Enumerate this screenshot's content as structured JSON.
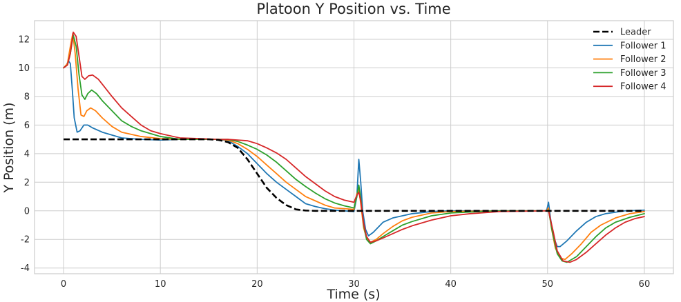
{
  "chart_data": {
    "type": "line",
    "title": "Platoon Y Position vs. Time",
    "xlabel": "Time (s)",
    "ylabel": "Y Position (m)",
    "xlim": [
      -3,
      63
    ],
    "ylim": [
      -4.4,
      13.3
    ],
    "xticks": [
      0,
      10,
      20,
      30,
      40,
      50,
      60
    ],
    "yticks": [
      -4,
      -2,
      0,
      2,
      4,
      6,
      8,
      10,
      12
    ],
    "grid": true,
    "legend_position": "top-right",
    "series": [
      {
        "name": "Leader",
        "color": "#000000",
        "dash": "dashed",
        "points": [
          [
            0,
            5
          ],
          [
            15,
            5
          ],
          [
            16,
            4.96
          ],
          [
            17,
            4.8
          ],
          [
            18,
            4.4
          ],
          [
            19,
            3.6
          ],
          [
            20,
            2.6
          ],
          [
            21,
            1.6
          ],
          [
            22,
            0.9
          ],
          [
            23,
            0.4
          ],
          [
            24,
            0.1
          ],
          [
            25,
            0.02
          ],
          [
            26,
            0
          ],
          [
            60,
            0
          ]
        ]
      },
      {
        "name": "Follower 1",
        "color": "#1f77b4",
        "dash": "solid",
        "points": [
          [
            0,
            10
          ],
          [
            0.3,
            10.2
          ],
          [
            0.5,
            10.5
          ],
          [
            0.7,
            10.3
          ],
          [
            0.9,
            8.5
          ],
          [
            1.1,
            6.5
          ],
          [
            1.4,
            5.5
          ],
          [
            1.7,
            5.6
          ],
          [
            2.1,
            6.0
          ],
          [
            2.5,
            6.0
          ],
          [
            3,
            5.8
          ],
          [
            4,
            5.5
          ],
          [
            6,
            5.1
          ],
          [
            8,
            5.0
          ],
          [
            10,
            4.95
          ],
          [
            12,
            5.0
          ],
          [
            14,
            5.0
          ],
          [
            16,
            5.0
          ],
          [
            17,
            4.9
          ],
          [
            18,
            4.5
          ],
          [
            19,
            4.0
          ],
          [
            20,
            3.3
          ],
          [
            21,
            2.6
          ],
          [
            22,
            2.0
          ],
          [
            23,
            1.5
          ],
          [
            24,
            1.0
          ],
          [
            25,
            0.5
          ],
          [
            26,
            0.3
          ],
          [
            27,
            0.15
          ],
          [
            28,
            0.05
          ],
          [
            29,
            0.0
          ],
          [
            30,
            -0.05
          ],
          [
            30.3,
            1.0
          ],
          [
            30.5,
            3.6
          ],
          [
            30.7,
            2.0
          ],
          [
            30.9,
            0.0
          ],
          [
            31.2,
            -1.3
          ],
          [
            31.5,
            -1.75
          ],
          [
            32,
            -1.5
          ],
          [
            33,
            -0.8
          ],
          [
            34,
            -0.5
          ],
          [
            36,
            -0.2
          ],
          [
            38,
            -0.05
          ],
          [
            40,
            0
          ],
          [
            45,
            0
          ],
          [
            49.9,
            0
          ],
          [
            50.1,
            0.6
          ],
          [
            50.3,
            -0.5
          ],
          [
            50.6,
            -1.8
          ],
          [
            51,
            -2.5
          ],
          [
            51.3,
            -2.5
          ],
          [
            52,
            -2.1
          ],
          [
            53,
            -1.4
          ],
          [
            54,
            -0.8
          ],
          [
            55,
            -0.4
          ],
          [
            56,
            -0.2
          ],
          [
            58,
            0
          ],
          [
            60,
            0.05
          ]
        ]
      },
      {
        "name": "Follower 2",
        "color": "#ff7f0e",
        "dash": "solid",
        "points": [
          [
            0,
            10
          ],
          [
            0.4,
            10.3
          ],
          [
            0.7,
            11.5
          ],
          [
            0.95,
            12.4
          ],
          [
            1.2,
            11
          ],
          [
            1.5,
            8.5
          ],
          [
            1.8,
            6.7
          ],
          [
            2.1,
            6.6
          ],
          [
            2.4,
            7.0
          ],
          [
            2.8,
            7.2
          ],
          [
            3.3,
            7.0
          ],
          [
            4,
            6.5
          ],
          [
            5,
            5.9
          ],
          [
            6,
            5.5
          ],
          [
            8,
            5.2
          ],
          [
            10,
            5.05
          ],
          [
            12,
            5.0
          ],
          [
            14,
            5.0
          ],
          [
            16,
            5.0
          ],
          [
            17,
            4.95
          ],
          [
            18,
            4.7
          ],
          [
            19,
            4.3
          ],
          [
            20,
            3.8
          ],
          [
            21,
            3.2
          ],
          [
            22,
            2.6
          ],
          [
            23,
            2.0
          ],
          [
            24,
            1.5
          ],
          [
            25,
            1.0
          ],
          [
            26,
            0.7
          ],
          [
            27,
            0.4
          ],
          [
            28,
            0.2
          ],
          [
            29,
            0.15
          ],
          [
            30,
            0.1
          ],
          [
            30.3,
            1.2
          ],
          [
            30.5,
            1.5
          ],
          [
            30.7,
            0.5
          ],
          [
            31,
            -1.2
          ],
          [
            31.3,
            -1.9
          ],
          [
            31.7,
            -2.2
          ],
          [
            32.3,
            -2.0
          ],
          [
            33,
            -1.6
          ],
          [
            34,
            -1.1
          ],
          [
            35,
            -0.7
          ],
          [
            36,
            -0.45
          ],
          [
            38,
            -0.15
          ],
          [
            40,
            -0.05
          ],
          [
            45,
            0
          ],
          [
            49.9,
            0
          ],
          [
            50.1,
            0.2
          ],
          [
            50.4,
            -1.2
          ],
          [
            50.8,
            -2.6
          ],
          [
            51.3,
            -3.3
          ],
          [
            51.8,
            -3.4
          ],
          [
            52.5,
            -3.0
          ],
          [
            53.5,
            -2.3
          ],
          [
            54.5,
            -1.5
          ],
          [
            55.5,
            -1.0
          ],
          [
            57,
            -0.5
          ],
          [
            58.5,
            -0.2
          ],
          [
            60,
            -0.05
          ]
        ]
      },
      {
        "name": "Follower 3",
        "color": "#2ca02c",
        "dash": "solid",
        "points": [
          [
            0,
            10
          ],
          [
            0.4,
            10.2
          ],
          [
            0.7,
            11
          ],
          [
            1.0,
            12.3
          ],
          [
            1.3,
            11.5
          ],
          [
            1.6,
            9.5
          ],
          [
            1.9,
            8.1
          ],
          [
            2.2,
            7.8
          ],
          [
            2.5,
            8.2
          ],
          [
            2.9,
            8.45
          ],
          [
            3.4,
            8.2
          ],
          [
            4,
            7.7
          ],
          [
            5,
            7.0
          ],
          [
            6,
            6.3
          ],
          [
            7,
            5.9
          ],
          [
            8,
            5.6
          ],
          [
            10,
            5.2
          ],
          [
            12,
            5.0
          ],
          [
            14,
            5.0
          ],
          [
            16,
            5.0
          ],
          [
            17,
            5.0
          ],
          [
            18,
            4.85
          ],
          [
            19,
            4.6
          ],
          [
            20,
            4.3
          ],
          [
            21,
            3.9
          ],
          [
            22,
            3.4
          ],
          [
            23,
            2.8
          ],
          [
            24,
            2.2
          ],
          [
            25,
            1.7
          ],
          [
            26,
            1.25
          ],
          [
            27,
            0.85
          ],
          [
            28,
            0.55
          ],
          [
            29,
            0.35
          ],
          [
            30,
            0.2
          ],
          [
            30.3,
            1.0
          ],
          [
            30.5,
            1.8
          ],
          [
            30.7,
            0.9
          ],
          [
            31,
            -1.0
          ],
          [
            31.3,
            -2.0
          ],
          [
            31.7,
            -2.3
          ],
          [
            32.3,
            -2.1
          ],
          [
            33,
            -1.8
          ],
          [
            34,
            -1.4
          ],
          [
            35,
            -1.0
          ],
          [
            36,
            -0.75
          ],
          [
            38,
            -0.35
          ],
          [
            40,
            -0.15
          ],
          [
            43,
            -0.05
          ],
          [
            45,
            0
          ],
          [
            49.9,
            0
          ],
          [
            50.1,
            0.05
          ],
          [
            50.5,
            -1.5
          ],
          [
            51,
            -3.0
          ],
          [
            51.5,
            -3.5
          ],
          [
            52,
            -3.6
          ],
          [
            53,
            -3.2
          ],
          [
            54,
            -2.5
          ],
          [
            55,
            -1.8
          ],
          [
            56,
            -1.2
          ],
          [
            57,
            -0.8
          ],
          [
            58.5,
            -0.45
          ],
          [
            60,
            -0.2
          ]
        ]
      },
      {
        "name": "Follower 4",
        "color": "#d62728",
        "dash": "solid",
        "points": [
          [
            0,
            10
          ],
          [
            0.4,
            10.2
          ],
          [
            0.7,
            11
          ],
          [
            1.0,
            12.5
          ],
          [
            1.3,
            12.2
          ],
          [
            1.6,
            10.8
          ],
          [
            1.9,
            9.4
          ],
          [
            2.2,
            9.2
          ],
          [
            2.6,
            9.45
          ],
          [
            3,
            9.5
          ],
          [
            3.6,
            9.2
          ],
          [
            4.3,
            8.6
          ],
          [
            5,
            8.0
          ],
          [
            6,
            7.2
          ],
          [
            7,
            6.6
          ],
          [
            8,
            6.0
          ],
          [
            9,
            5.6
          ],
          [
            10,
            5.4
          ],
          [
            12,
            5.1
          ],
          [
            14,
            5.05
          ],
          [
            16,
            5.0
          ],
          [
            17,
            5.0
          ],
          [
            18,
            4.95
          ],
          [
            19,
            4.9
          ],
          [
            20,
            4.7
          ],
          [
            21,
            4.4
          ],
          [
            22,
            4.05
          ],
          [
            23,
            3.6
          ],
          [
            24,
            3.0
          ],
          [
            25,
            2.4
          ],
          [
            26,
            1.9
          ],
          [
            27,
            1.4
          ],
          [
            28,
            1.0
          ],
          [
            29,
            0.75
          ],
          [
            30,
            0.6
          ],
          [
            30.3,
            1.1
          ],
          [
            30.5,
            1.3
          ],
          [
            30.7,
            0.7
          ],
          [
            31,
            -0.9
          ],
          [
            31.3,
            -1.8
          ],
          [
            31.7,
            -2.2
          ],
          [
            32.3,
            -2.1
          ],
          [
            33,
            -1.9
          ],
          [
            34,
            -1.6
          ],
          [
            35,
            -1.3
          ],
          [
            36,
            -1.05
          ],
          [
            38,
            -0.65
          ],
          [
            40,
            -0.35
          ],
          [
            42,
            -0.2
          ],
          [
            45,
            -0.05
          ],
          [
            49.9,
            0
          ],
          [
            50.1,
            0
          ],
          [
            50.6,
            -1.5
          ],
          [
            51,
            -2.8
          ],
          [
            51.6,
            -3.5
          ],
          [
            52.3,
            -3.6
          ],
          [
            53,
            -3.4
          ],
          [
            54,
            -2.9
          ],
          [
            55,
            -2.3
          ],
          [
            56,
            -1.7
          ],
          [
            57,
            -1.2
          ],
          [
            58,
            -0.8
          ],
          [
            59,
            -0.55
          ],
          [
            60,
            -0.4
          ]
        ]
      }
    ]
  }
}
